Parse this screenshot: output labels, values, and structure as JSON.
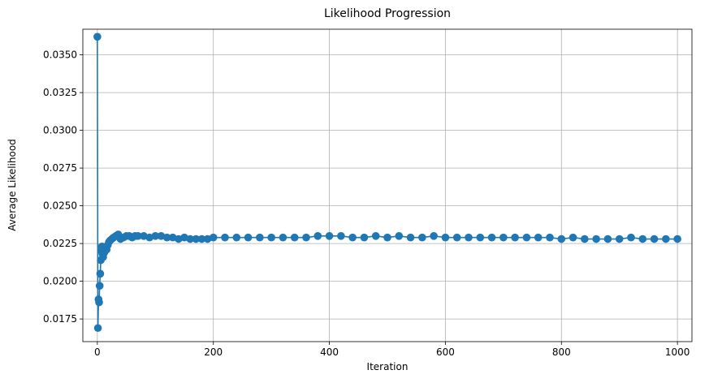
{
  "chart_data": {
    "type": "line",
    "title": "Likelihood Progression",
    "xlabel": "Iteration",
    "ylabel": "Average Likelihood",
    "xlim": [
      -25,
      1025
    ],
    "ylim": [
      0.016,
      0.0367
    ],
    "x_ticks": [
      0,
      200,
      400,
      600,
      800,
      1000
    ],
    "x_tick_labels": [
      "0",
      "200",
      "400",
      "600",
      "800",
      "1000"
    ],
    "y_ticks": [
      0.0175,
      0.02,
      0.0225,
      0.025,
      0.0275,
      0.03,
      0.0325,
      0.035
    ],
    "y_tick_labels": [
      "0.0175",
      "0.0200",
      "0.0225",
      "0.0250",
      "0.0275",
      "0.0300",
      "0.0325",
      "0.0350"
    ],
    "grid": true,
    "marker": "circle",
    "colors": {
      "series": "#1f77b4",
      "grid": "#b0b0b0",
      "axes": "#000000"
    },
    "series": [
      {
        "x": [
          0,
          1,
          2,
          3,
          4,
          5,
          6,
          7,
          8,
          9,
          10,
          12,
          14,
          16,
          18,
          20,
          22,
          25,
          28,
          32,
          36,
          40,
          45,
          50,
          55,
          60,
          65,
          70,
          80,
          90,
          100,
          110,
          120,
          130,
          140,
          150,
          160,
          170,
          180,
          190,
          200,
          220,
          240,
          260,
          280,
          300,
          320,
          340,
          360,
          380,
          400,
          420,
          440,
          460,
          480,
          500,
          520,
          540,
          560,
          580,
          600,
          620,
          640,
          660,
          680,
          700,
          720,
          740,
          760,
          780,
          800,
          820,
          840,
          860,
          880,
          900,
          920,
          940,
          960,
          980,
          1000
        ],
        "values": [
          0.0362,
          0.0169,
          0.0188,
          0.0186,
          0.0197,
          0.0205,
          0.0214,
          0.022,
          0.0223,
          0.0218,
          0.0216,
          0.0219,
          0.0222,
          0.0221,
          0.0224,
          0.0226,
          0.0227,
          0.0228,
          0.0229,
          0.023,
          0.0231,
          0.0228,
          0.0229,
          0.023,
          0.023,
          0.0229,
          0.023,
          0.023,
          0.023,
          0.0229,
          0.023,
          0.023,
          0.0229,
          0.0229,
          0.0228,
          0.0229,
          0.0228,
          0.0228,
          0.0228,
          0.0228,
          0.0229,
          0.0229,
          0.0229,
          0.0229,
          0.0229,
          0.0229,
          0.0229,
          0.0229,
          0.0229,
          0.023,
          0.023,
          0.023,
          0.0229,
          0.0229,
          0.023,
          0.0229,
          0.023,
          0.0229,
          0.0229,
          0.023,
          0.0229,
          0.0229,
          0.0229,
          0.0229,
          0.0229,
          0.0229,
          0.0229,
          0.0229,
          0.0229,
          0.0229,
          0.0228,
          0.0229,
          0.0228,
          0.0228,
          0.0228,
          0.0228,
          0.0229,
          0.0228,
          0.0228,
          0.0228,
          0.0228
        ]
      }
    ]
  }
}
